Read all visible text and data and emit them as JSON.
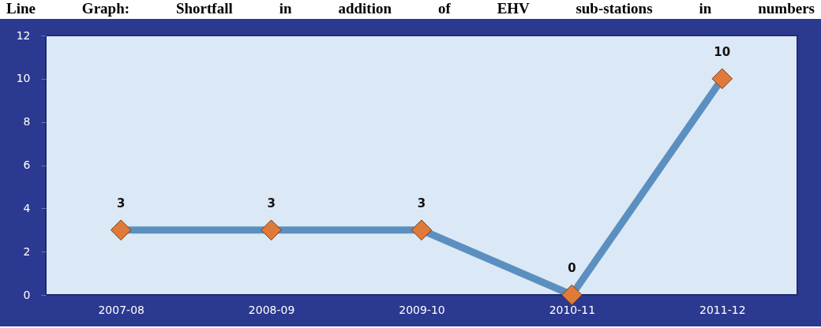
{
  "chart_data": {
    "type": "line",
    "title": "Line Graph: Shortfall in addition of EHV sub-stations in numbers",
    "categories": [
      "2007-08",
      "2008-09",
      "2009-10",
      "2010-11",
      "2011-12"
    ],
    "series": [
      {
        "color": "#5b8fc0",
        "colors": [
          "#e07a3a",
          "#e07a3a",
          "#e07a3a",
          "#e07a3a",
          "#e07a3a"
        ],
        "values": [
          3,
          3,
          3,
          0,
          10
        ]
      }
    ],
    "ylim": [
      0,
      12
    ],
    "yticks": [
      0,
      2,
      4,
      6,
      8,
      10,
      12
    ],
    "grid": false,
    "legend": false,
    "marker": "diamond",
    "line_style": "solid",
    "data_labels": true
  }
}
